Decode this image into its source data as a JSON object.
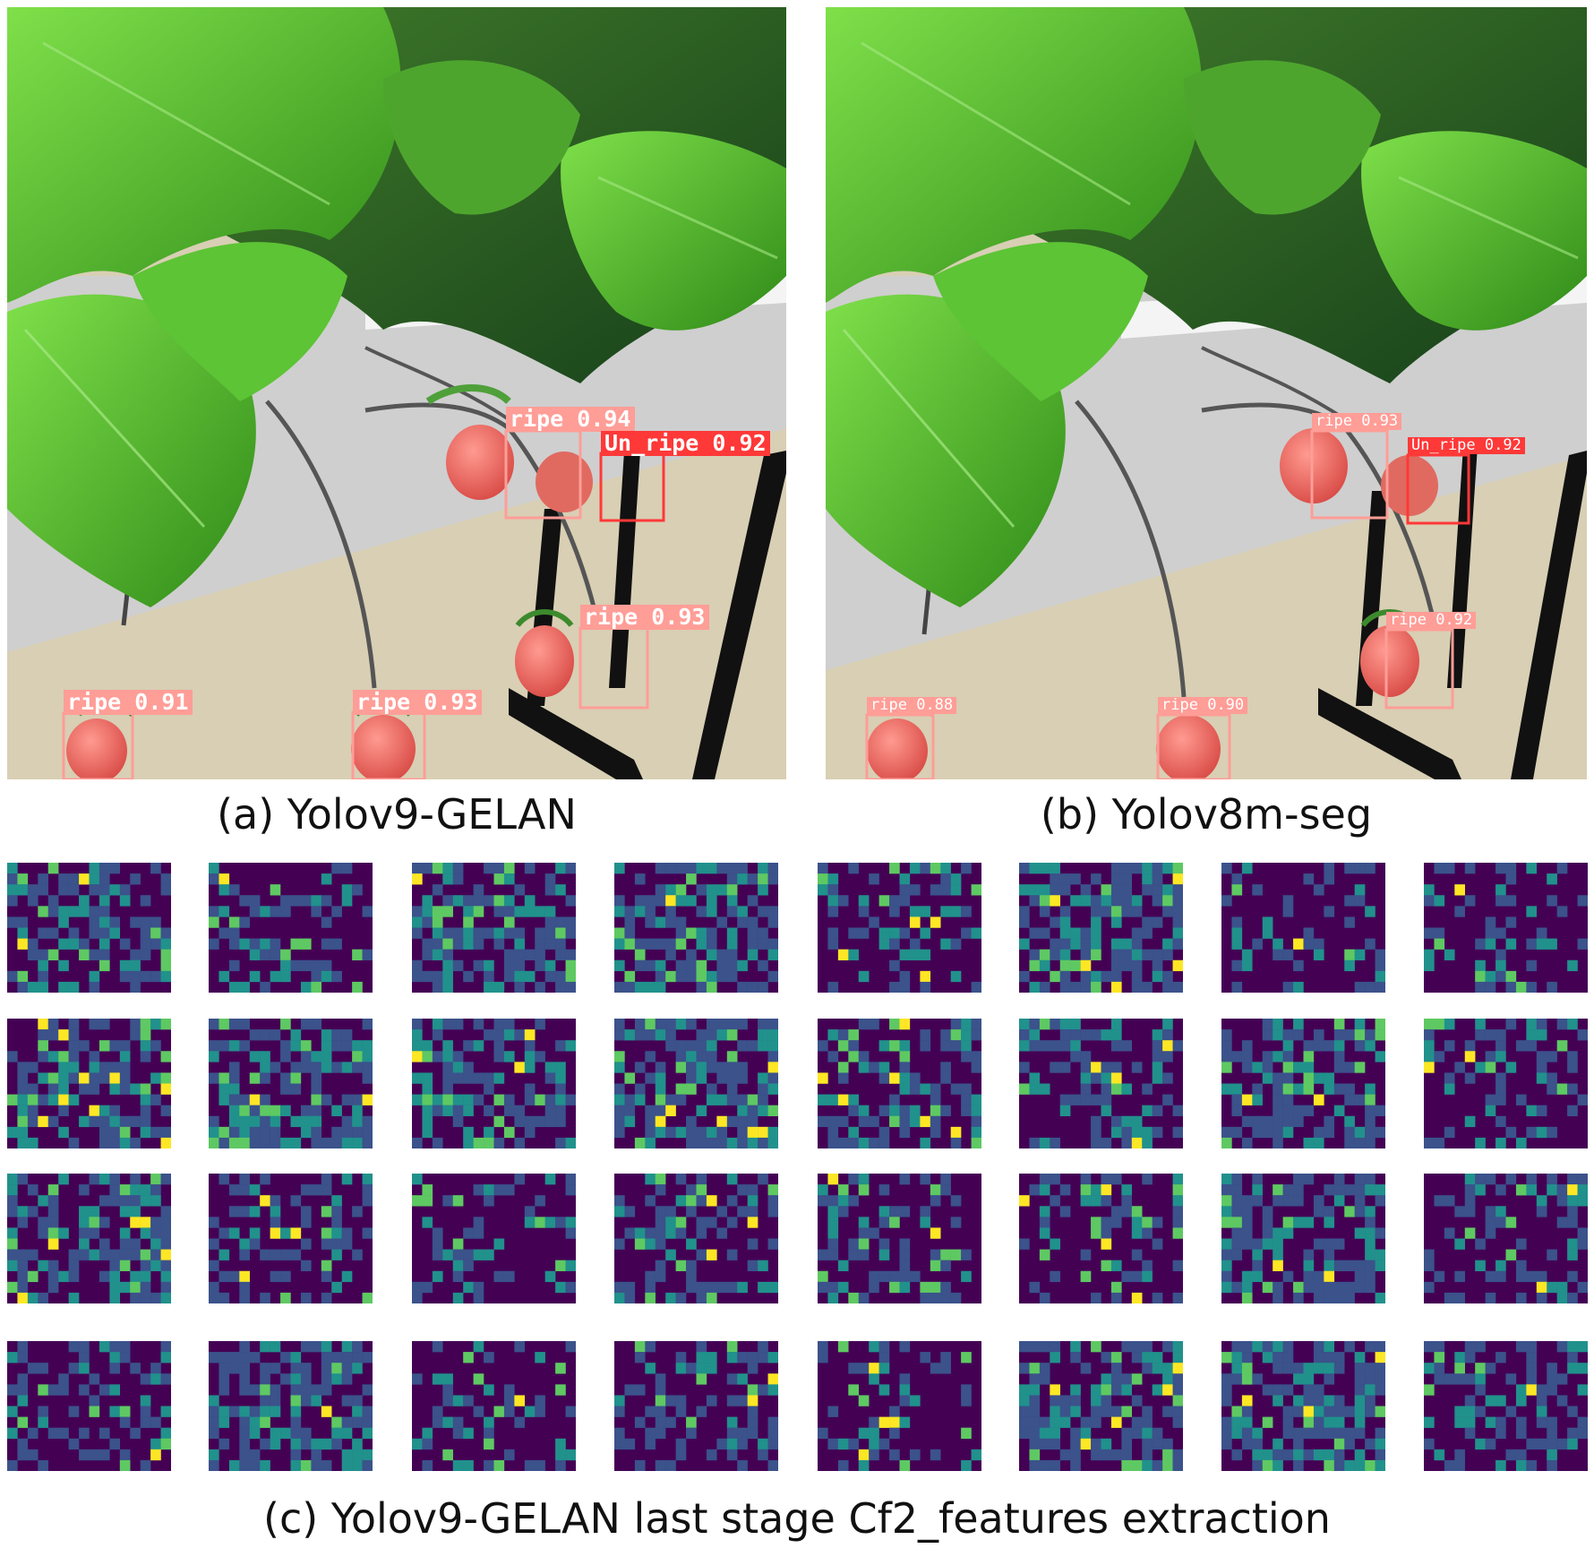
{
  "panels": [
    {
      "id": "a",
      "caption": "(a) Yolov9-GELAN",
      "detections": [
        {
          "label": "ripe",
          "score": "0.94",
          "kind": "ripe"
        },
        {
          "label": "Un_ripe",
          "score": "0.92",
          "kind": "unripe"
        },
        {
          "label": "ripe",
          "score": "0.93",
          "kind": "ripe"
        },
        {
          "label": "ripe",
          "score": "0.91",
          "kind": "ripe"
        },
        {
          "label": "ripe",
          "score": "0.93",
          "kind": "ripe"
        }
      ]
    },
    {
      "id": "b",
      "caption": "(b) Yolov8m-seg",
      "detections": [
        {
          "label": "ripe",
          "score": "0.93",
          "kind": "ripe"
        },
        {
          "label": "Un_ripe",
          "score": "0.92",
          "kind": "unripe"
        },
        {
          "label": "ripe",
          "score": "0.92",
          "kind": "ripe"
        },
        {
          "label": "ripe",
          "score": "0.88",
          "kind": "ripe"
        },
        {
          "label": "ripe",
          "score": "0.90",
          "kind": "ripe"
        }
      ]
    }
  ],
  "feature_grid": {
    "caption": "(c) Yolov9-GELAN last stage  Cf2_features extraction",
    "rows": 4,
    "cols": 8,
    "colormap": [
      "#440154",
      "#3b528b",
      "#21918c",
      "#5ec962",
      "#fde725"
    ]
  },
  "colors": {
    "ripe_box": "#ff9d97",
    "unripe_box": "#ff3838",
    "label_text": "#ffffff"
  }
}
